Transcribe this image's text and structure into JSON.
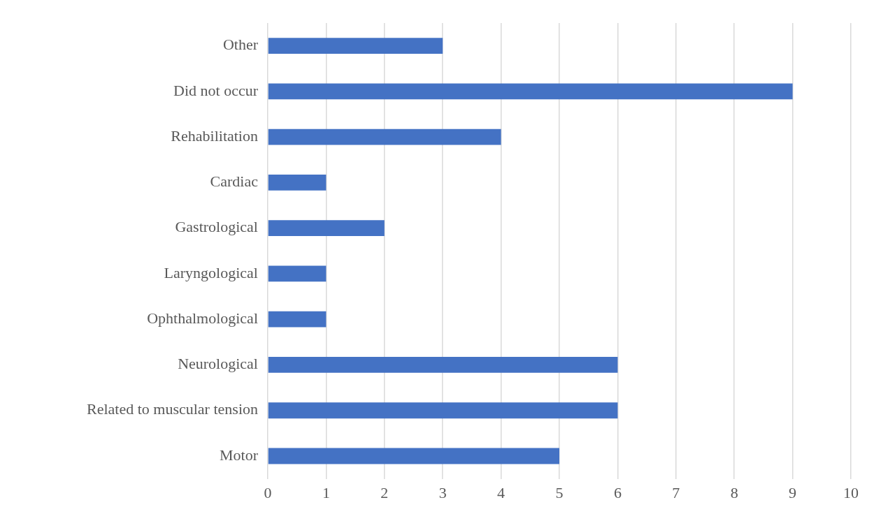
{
  "chart_data": {
    "type": "bar",
    "orientation": "horizontal",
    "categories": [
      "Other",
      "Did not occur",
      "Rehabilitation",
      "Cardiac",
      "Gastrological",
      "Laryngological",
      "Ophthalmological",
      "Neurological",
      "Related to muscular tension",
      "Motor"
    ],
    "values": [
      3,
      9,
      4,
      1,
      2,
      1,
      1,
      6,
      6,
      5
    ],
    "color": "#4472c4",
    "xlim": [
      0,
      10
    ],
    "xticks": [
      0,
      1,
      2,
      3,
      4,
      5,
      6,
      7,
      8,
      9,
      10
    ],
    "grid": "x",
    "legend": false
  }
}
